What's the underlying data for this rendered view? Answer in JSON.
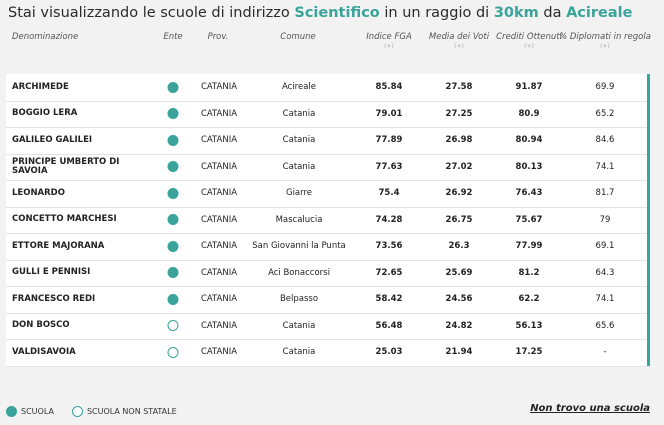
{
  "title": {
    "prefix": "Stai visualizzando le scuole di indirizzo ",
    "indirizzo": "Scientifico",
    "middle": " in un raggio di ",
    "raggio": "30km",
    "da": " da ",
    "citta": "Acireale"
  },
  "columns": {
    "denominazione": "Denominazione",
    "ente": "Ente",
    "prov": "Prov.",
    "comune": "Comune",
    "indice_fga": "Indice FGA",
    "media_voti": "Media dei Voti",
    "crediti": "Crediti Ottenuti",
    "diplomati": "% Diplomati in regola",
    "sort_indicator": "(+)"
  },
  "colors": {
    "accent": "#3aa39a"
  },
  "rows": [
    {
      "name": "ARCHIMEDE",
      "statale": true,
      "prov": "CATANIA",
      "comune": "Acireale",
      "fga": "85.84",
      "media": "27.58",
      "crediti": "91.87",
      "diplomati": "69.9"
    },
    {
      "name": "BOGGIO LERA",
      "statale": true,
      "prov": "CATANIA",
      "comune": "Catania",
      "fga": "79.01",
      "media": "27.25",
      "crediti": "80.9",
      "diplomati": "65.2"
    },
    {
      "name": "GALILEO GALILEI",
      "statale": true,
      "prov": "CATANIA",
      "comune": "Catania",
      "fga": "77.89",
      "media": "26.98",
      "crediti": "80.94",
      "diplomati": "84.6"
    },
    {
      "name": "PRINCIPE UMBERTO DI SAVOIA",
      "statale": true,
      "prov": "CATANIA",
      "comune": "Catania",
      "fga": "77.63",
      "media": "27.02",
      "crediti": "80.13",
      "diplomati": "74.1"
    },
    {
      "name": "LEONARDO",
      "statale": true,
      "prov": "CATANIA",
      "comune": "Giarre",
      "fga": "75.4",
      "media": "26.92",
      "crediti": "76.43",
      "diplomati": "81.7"
    },
    {
      "name": "CONCETTO MARCHESI",
      "statale": true,
      "prov": "CATANIA",
      "comune": "Mascalucia",
      "fga": "74.28",
      "media": "26.75",
      "crediti": "75.67",
      "diplomati": "79"
    },
    {
      "name": "ETTORE MAJORANA",
      "statale": true,
      "prov": "CATANIA",
      "comune": "San Giovanni la Punta",
      "fga": "73.56",
      "media": "26.3",
      "crediti": "77.99",
      "diplomati": "69.1"
    },
    {
      "name": "GULLI E PENNISI",
      "statale": true,
      "prov": "CATANIA",
      "comune": "Aci Bonaccorsi",
      "fga": "72.65",
      "media": "25.69",
      "crediti": "81.2",
      "diplomati": "64.3"
    },
    {
      "name": "FRANCESCO REDI",
      "statale": true,
      "prov": "CATANIA",
      "comune": "Belpasso",
      "fga": "58.42",
      "media": "24.56",
      "crediti": "62.2",
      "diplomati": "74.1"
    },
    {
      "name": "DON BOSCO",
      "statale": false,
      "prov": "CATANIA",
      "comune": "Catania",
      "fga": "56.48",
      "media": "24.82",
      "crediti": "56.13",
      "diplomati": "65.6"
    },
    {
      "name": "VALDISAVOIA",
      "statale": false,
      "prov": "CATANIA",
      "comune": "Catania",
      "fga": "25.03",
      "media": "21.94",
      "crediti": "17.25",
      "diplomati": "-"
    }
  ],
  "legend": {
    "scuola": "SCUOLA",
    "non_statale": "SCUOLA NON STATALE"
  },
  "link": "Non trovo una scuola"
}
